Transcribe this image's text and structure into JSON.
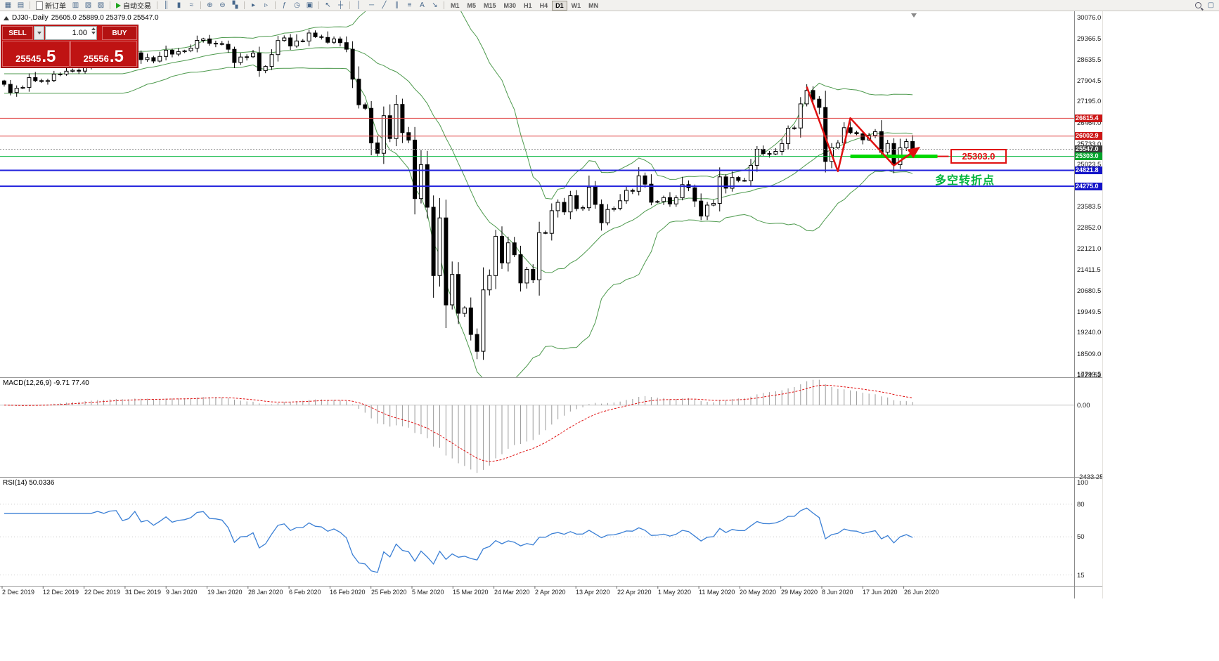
{
  "colors": {
    "accent_red": "#e01010",
    "hline_blue": "#2222dd",
    "hline_green": "#00b43c",
    "bollinger": "#4e9a4e",
    "rsi_line": "#3a7fd5",
    "macd_hist": "#9a9a9a",
    "macd_signal": "#e01010",
    "candle_up": "#ffffff",
    "candle_down": "#000000",
    "trade_red": "#c41616",
    "highlight_green": "#00d800"
  },
  "toolbar": {
    "items": [
      {
        "t": "icon",
        "name": "new-chart-icon",
        "g": "▦"
      },
      {
        "t": "icon",
        "name": "chart-profiles-icon",
        "g": "▤"
      },
      {
        "t": "sep"
      },
      {
        "t": "button",
        "name": "new-order-button",
        "label": "新订单",
        "icon": "page"
      },
      {
        "t": "icon",
        "name": "market-watch-icon",
        "g": "▥"
      },
      {
        "t": "icon",
        "name": "data-window-icon",
        "g": "▧"
      },
      {
        "t": "icon",
        "name": "terminal-icon",
        "g": "▨"
      },
      {
        "t": "sep"
      },
      {
        "t": "button",
        "name": "auto-trading-button",
        "label": "自动交易",
        "icon": "play"
      },
      {
        "t": "sep"
      },
      {
        "t": "icon",
        "name": "bar-chart-icon",
        "g": "║"
      },
      {
        "t": "icon",
        "name": "candlestick-chart-icon",
        "g": "▮"
      },
      {
        "t": "icon",
        "name": "line-chart-icon",
        "g": "≈"
      },
      {
        "t": "sep"
      },
      {
        "t": "icon",
        "name": "zoom-in-icon",
        "g": "⊕"
      },
      {
        "t": "icon",
        "name": "zoom-out-icon",
        "g": "⊖"
      },
      {
        "t": "icon",
        "name": "tile-windows-icon",
        "g": "▚"
      },
      {
        "t": "sep"
      },
      {
        "t": "icon",
        "name": "auto-scroll-icon",
        "g": "▸"
      },
      {
        "t": "icon",
        "name": "chart-shift-icon",
        "g": "▹"
      },
      {
        "t": "sep"
      },
      {
        "t": "icon",
        "name": "indicators-icon",
        "g": "ƒ"
      },
      {
        "t": "icon",
        "name": "periods-icon",
        "g": "◷"
      },
      {
        "t": "icon",
        "name": "templates-icon",
        "g": "▣"
      },
      {
        "t": "sep"
      },
      {
        "t": "icon",
        "name": "cursor-icon",
        "g": "↖"
      },
      {
        "t": "icon",
        "name": "crosshair-icon",
        "g": "┼"
      },
      {
        "t": "sep"
      },
      {
        "t": "icon",
        "name": "vertical-line-icon",
        "g": "│"
      },
      {
        "t": "icon",
        "name": "horizontal-line-icon",
        "g": "─"
      },
      {
        "t": "icon",
        "name": "trendline-icon",
        "g": "╱"
      },
      {
        "t": "icon",
        "name": "channel-icon",
        "g": "∥"
      },
      {
        "t": "icon",
        "name": "fibonacci-icon",
        "g": "≡"
      },
      {
        "t": "icon",
        "name": "text-icon",
        "g": "A"
      },
      {
        "t": "icon",
        "name": "arrows-icon",
        "g": "↘"
      },
      {
        "t": "sep"
      },
      {
        "t": "tf",
        "label": "M1"
      },
      {
        "t": "tf",
        "label": "M5"
      },
      {
        "t": "tf",
        "label": "M15"
      },
      {
        "t": "tf",
        "label": "M30"
      },
      {
        "t": "tf",
        "label": "H1"
      },
      {
        "t": "tf",
        "label": "H4"
      },
      {
        "t": "tf",
        "label": "D1",
        "active": true
      },
      {
        "t": "tf",
        "label": "W1"
      },
      {
        "t": "tf",
        "label": "MN"
      },
      {
        "t": "spacer"
      },
      {
        "t": "icon",
        "name": "search-icon",
        "g": "mag"
      },
      {
        "t": "icon",
        "name": "new-window-icon",
        "g": "▢"
      }
    ]
  },
  "chart": {
    "header": {
      "symbol_period": "DJ30-,Daily",
      "ohlc": "25605.0 25889.0 25379.0 25547.0"
    },
    "trade_panel": {
      "sell_label": "SELL",
      "buy_label": "BUY",
      "volume": "1.00",
      "sell_price": "25545",
      "sell_price_frac": ".5",
      "buy_price": "25556",
      "buy_price_frac": ".5"
    },
    "y_axis_labels": [
      "30076.0",
      "29366.5",
      "28635.5",
      "27904.5",
      "27195.0",
      "26464.0",
      "25733.0",
      "25023.5",
      "24292.5",
      "23583.5",
      "22852.0",
      "22121.0",
      "21411.5",
      "20680.5",
      "19949.5",
      "19240.0",
      "18509.0",
      "17799.5"
    ],
    "price_tags": [
      {
        "text": "26615.4",
        "price": 26615.4,
        "color": "#cc1616"
      },
      {
        "text": "26002.9",
        "price": 26002.9,
        "color": "#cc1616"
      },
      {
        "text": "25547.0",
        "price": 25547.0,
        "color": "#3a3a3a"
      },
      {
        "text": "25303.0",
        "price": 25303.0,
        "color": "#00a42a"
      },
      {
        "text": "24821.8",
        "price": 24821.8,
        "color": "#1414c8"
      },
      {
        "text": "24275.0",
        "price": 24275.0,
        "color": "#1414c8"
      }
    ],
    "hlines": [
      {
        "price": 26615.4,
        "color": "#e04444",
        "w": 1
      },
      {
        "price": 26002.9,
        "color": "#e04444",
        "w": 1
      },
      {
        "price": 25547.0,
        "color": "#9a9a9a",
        "w": 1,
        "dash": "2,2"
      },
      {
        "price": 25303.0,
        "color": "#00b43c",
        "w": 1
      },
      {
        "price": 24821.8,
        "color": "#2222dd",
        "w": 2
      },
      {
        "price": 24275.0,
        "color": "#2222dd",
        "w": 2
      }
    ],
    "x_axis_labels": [
      "2 Dec 2019",
      "12 Dec 2019",
      "22 Dec 2019",
      "31 Dec 2019",
      "9 Jan 2020",
      "19 Jan 2020",
      "28 Jan 2020",
      "6 Feb 2020",
      "16 Feb 2020",
      "25 Feb 2020",
      "5 Mar 2020",
      "15 Mar 2020",
      "24 Mar 2020",
      "2 Apr 2020",
      "13 Apr 2020",
      "22 Apr 2020",
      "1 May 2020",
      "11 May 2020",
      "20 May 2020",
      "29 May 2020",
      "8 Jun 2020",
      "17 Jun 2020",
      "26 Jun 2020"
    ],
    "annotations": {
      "price_callout": "25303.0",
      "turning_point_label": "多空转折点",
      "highlight_bar": {
        "price": 25303.0,
        "x1_candle": 136,
        "x2_candle": 150
      },
      "zigzag": [
        [
          129,
          27700
        ],
        [
          134,
          24790
        ],
        [
          136,
          26620
        ],
        [
          143,
          24990
        ],
        [
          147,
          25600
        ]
      ]
    }
  },
  "macd": {
    "label": "MACD(12,26,9) -9.71 77.40",
    "scale_labels": [
      "1024.52",
      "0.00",
      "-2433.25"
    ],
    "scale_values": [
      1024.52,
      0,
      -2433.25
    ]
  },
  "rsi": {
    "label": "RSI(14) 50.0336",
    "scale_labels": [
      "100",
      "80",
      "50",
      "15"
    ],
    "scale_values": [
      100,
      80,
      50,
      15
    ],
    "levels": [
      80,
      50,
      15
    ]
  },
  "chart_data": {
    "type": "candlestick",
    "symbol": "DJ30-",
    "period": "Daily",
    "ohlc_display": {
      "open": "25605.0",
      "high": "25889.0",
      "low": "25379.0",
      "close": "25547.0"
    },
    "price_range": [
      17700,
      30300
    ],
    "first_open": 27900,
    "closes": [
      27783,
      27502,
      27650,
      27678,
      28015,
      27910,
      27882,
      27911,
      28132,
      28135,
      28236,
      28267,
      28239,
      28377,
      28455,
      28551,
      28515,
      28622,
      28645,
      28462,
      28538,
      28868,
      28635,
      28703,
      28584,
      28745,
      28957,
      28824,
      28907,
      28939,
      29030,
      29297,
      29348,
      29196,
      29186,
      29160,
      28990,
      28536,
      28723,
      28734,
      28859,
      28256,
      28400,
      28808,
      29291,
      29380,
      29103,
      29277,
      29276,
      29551,
      29423,
      29398,
      29232,
      29348,
      29220,
      28992,
      27961,
      27081,
      26958,
      25767,
      25409,
      26703,
      25917,
      27090,
      26121,
      25865,
      23851,
      25018,
      23553,
      21201,
      23186,
      20189,
      21237,
      19899,
      20087,
      19174,
      18592,
      20705,
      21201,
      22552,
      21637,
      22327,
      21917,
      20944,
      21413,
      21053,
      22680,
      22654,
      23434,
      23719,
      23391,
      23950,
      23504,
      23537,
      24242,
      23650,
      23018,
      23476,
      23515,
      23775,
      24134,
      24102,
      24634,
      24346,
      23724,
      23750,
      23883,
      23665,
      23876,
      24331,
      24222,
      23765,
      23248,
      23625,
      23685,
      24597,
      24207,
      24576,
      24474,
      24465,
      24995,
      25548,
      25401,
      25383,
      25475,
      25743,
      26270,
      26282,
      27111,
      27572,
      27272,
      26990,
      25128,
      25605,
      25763,
      26290,
      26120,
      26080,
      25871,
      26025,
      26156,
      25445,
      25746,
      25016,
      25596,
      25813,
      25547
    ],
    "indicators": [
      {
        "name": "Bollinger Bands",
        "period": 20,
        "deviation": 2
      },
      {
        "name": "MACD",
        "fast": 12,
        "slow": 26,
        "signal": 9,
        "current": "-9.71 77.40"
      },
      {
        "name": "RSI",
        "period": 14,
        "current": "50.0336"
      }
    ]
  }
}
